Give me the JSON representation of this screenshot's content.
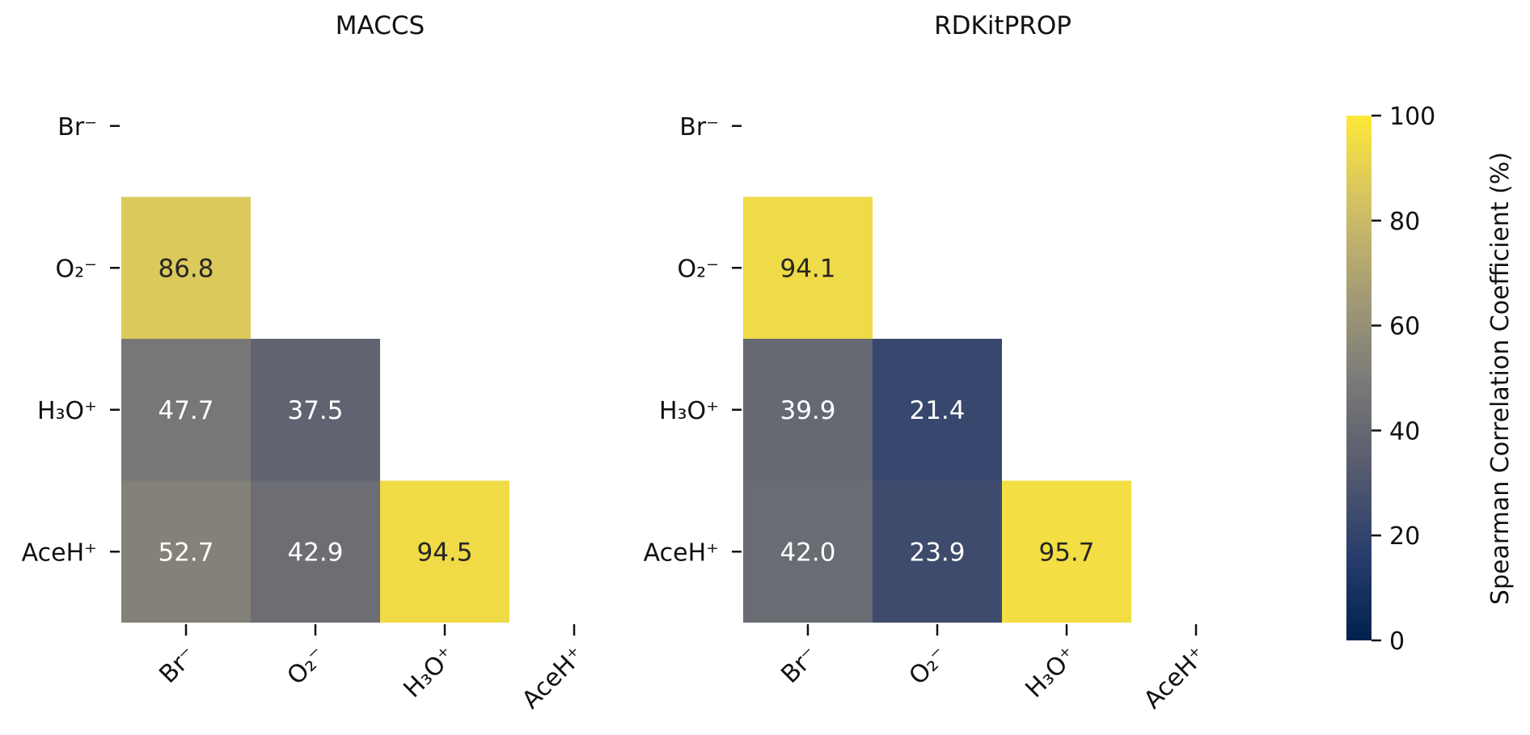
{
  "chart_data": [
    {
      "type": "heatmap",
      "title": "MACCS",
      "rows": [
        "Br⁻",
        "O₂⁻",
        "H₃O⁺",
        "AceH⁺"
      ],
      "cols": [
        "Br⁻",
        "O₂⁻",
        "H₃O⁺",
        "AceH⁺"
      ],
      "values": [
        [
          null,
          null,
          null,
          null
        ],
        [
          86.8,
          null,
          null,
          null
        ],
        [
          47.7,
          37.5,
          null,
          null
        ],
        [
          52.7,
          42.9,
          94.5,
          null
        ]
      ],
      "labels": [
        [
          null,
          null,
          null,
          null
        ],
        [
          "86.8",
          null,
          null,
          null
        ],
        [
          "47.7",
          "37.5",
          null,
          null
        ],
        [
          "52.7",
          "42.9",
          "94.5",
          null
        ]
      ],
      "mask": "upper-triangle"
    },
    {
      "type": "heatmap",
      "title": "RDKitPROP",
      "rows": [
        "Br⁻",
        "O₂⁻",
        "H₃O⁺",
        "AceH⁺"
      ],
      "cols": [
        "Br⁻",
        "O₂⁻",
        "H₃O⁺",
        "AceH⁺"
      ],
      "values": [
        [
          null,
          null,
          null,
          null
        ],
        [
          94.1,
          null,
          null,
          null
        ],
        [
          39.9,
          21.4,
          null,
          null
        ],
        [
          42.0,
          23.9,
          95.7,
          null
        ]
      ],
      "labels": [
        [
          null,
          null,
          null,
          null
        ],
        [
          "94.1",
          null,
          null,
          null
        ],
        [
          "39.9",
          "21.4",
          null,
          null
        ],
        [
          "42.0",
          "23.9",
          "95.7",
          null
        ]
      ],
      "mask": "upper-triangle"
    }
  ],
  "colorbar": {
    "label": "Spearman Correlation Coefficient (%)",
    "range": [
      0,
      100
    ],
    "ticks": [
      0,
      20,
      40,
      60,
      80,
      100
    ],
    "colormap": "cividis",
    "stops": [
      "#00224e",
      "#2a3e6c",
      "#575c6e",
      "#7c7b78",
      "#a69d75",
      "#d3c164",
      "#fee838"
    ]
  }
}
